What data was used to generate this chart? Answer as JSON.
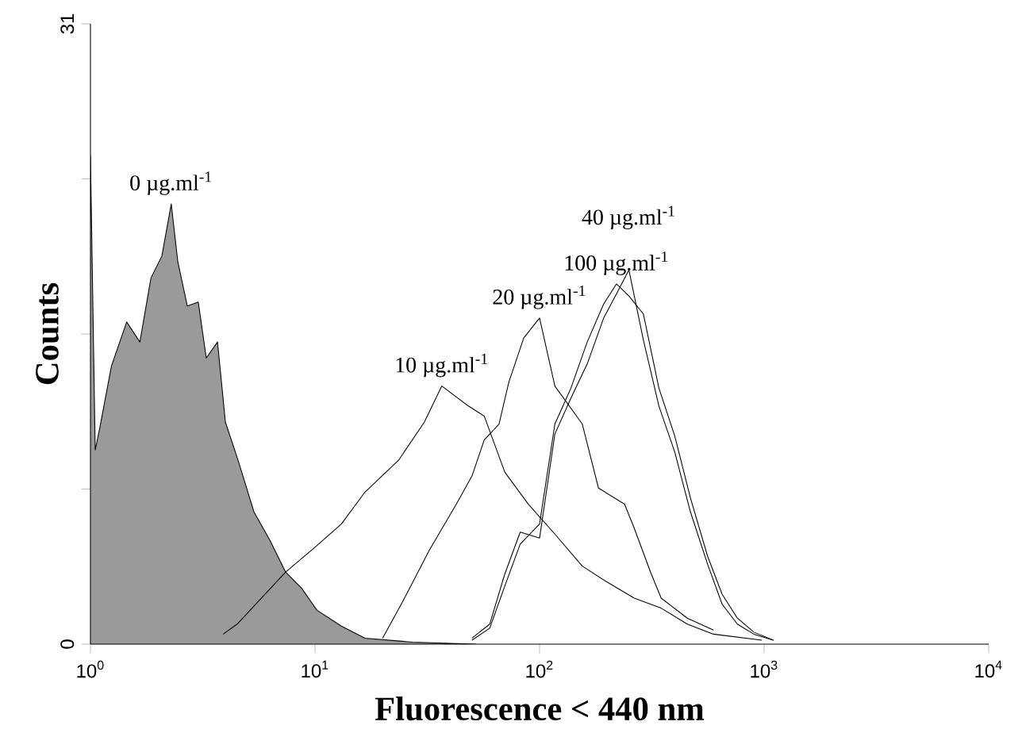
{
  "chart_data": {
    "type": "line",
    "xlabel": "Fluorescence < 440 nm",
    "ylabel": "Counts",
    "log": "x",
    "legend": false,
    "grid": false,
    "xlim": [
      1,
      10000
    ],
    "xticks": [
      {
        "value": 1,
        "label": "10$^{0}$"
      },
      {
        "value": 10,
        "label": "10$^{1}$"
      },
      {
        "value": 100,
        "label": "10$^{2}$"
      },
      {
        "value": 1000,
        "label": "10$^{3}$"
      },
      {
        "value": 10000,
        "label": "10$^{4}$"
      }
    ],
    "ylim": [
      0,
      31
    ],
    "yticks": [
      0,
      {
        "value": 7.75,
        "label": null
      },
      {
        "value": 15.5,
        "label": null
      },
      {
        "value": 23.25,
        "label": null
      },
      31
    ],
    "series": [
      {
        "name": "0 µg.ml$^{-1}$",
        "type": "area",
        "color": "#9a9a9a",
        "x": [
          1.0,
          1.05,
          1.1,
          1.24,
          1.45,
          1.66,
          1.86,
          2.08,
          2.29,
          2.45,
          2.7,
          3.02,
          3.28,
          3.68,
          3.99,
          4.54,
          5.35,
          6.29,
          7.4,
          8.71,
          10.2,
          13.1,
          16.7,
          27.2,
          52
        ],
        "values": [
          24.4,
          9.7,
          10.8,
          13.9,
          16.1,
          15.1,
          18.3,
          19.4,
          22.0,
          19.1,
          16.9,
          17.1,
          14.3,
          15.1,
          11.1,
          9.2,
          6.6,
          5.2,
          3.6,
          2.8,
          1.7,
          0.9,
          0.3,
          0.1,
          0
        ]
      },
      {
        "name": "10 µg.ml$^{-1}$",
        "color": "#000000",
        "x": [
          3.9,
          4.5,
          7.4,
          9.9,
          13.1,
          16.7,
          23.6,
          30.7,
          36.7,
          48.2,
          56.7,
          70,
          89,
          117,
          155,
          200,
          264,
          348,
          455,
          595,
          977
        ],
        "values": [
          0.5,
          1.0,
          3.6,
          4.8,
          6.0,
          7.6,
          9.2,
          11.1,
          12.9,
          11.9,
          11.4,
          8.6,
          7.0,
          5.5,
          3.9,
          3.1,
          2.3,
          1.8,
          1.0,
          0.5,
          0.2
        ]
      },
      {
        "name": "20 µg.ml$^{-1}$",
        "color": "#000000",
        "x": [
          20,
          24.5,
          32.3,
          42.6,
          50,
          56.7,
          66,
          73,
          85,
          100,
          117,
          155,
          183,
          239,
          264,
          312,
          348,
          455,
          595
        ],
        "values": [
          0.3,
          2.1,
          4.7,
          7.0,
          8.4,
          10.2,
          11.0,
          13.1,
          15.3,
          16.3,
          12.9,
          11.0,
          7.8,
          7.0,
          5.8,
          3.6,
          2.3,
          1.3,
          0.7
        ]
      },
      {
        "name": "40 µg.ml$^{-1}$",
        "color": "#000000",
        "x": [
          50,
          60,
          70,
          82,
          100,
          117,
          138,
          163,
          193,
          220,
          250,
          290,
          340,
          400,
          470,
          560,
          650,
          760,
          900,
          1100
        ],
        "values": [
          0.3,
          1.0,
          3.5,
          5.6,
          5.3,
          10.5,
          12.3,
          14.0,
          16.3,
          17.5,
          18.7,
          15.2,
          11.9,
          9.6,
          6.6,
          4.0,
          2.0,
          1.0,
          0.5,
          0.2
        ]
      },
      {
        "name": "100 µg.ml$^{-1}$",
        "color": "#000000",
        "x": [
          50,
          60,
          70,
          82,
          100,
          117,
          138,
          163,
          193,
          220,
          250,
          290,
          340,
          400,
          470,
          560,
          650,
          760,
          900,
          1100
        ],
        "values": [
          0.2,
          0.8,
          2.9,
          5.0,
          6.0,
          11.0,
          12.8,
          15.1,
          17.0,
          18.0,
          17.4,
          16.5,
          12.8,
          10.4,
          7.3,
          4.4,
          2.5,
          1.3,
          0.6,
          0.2
        ]
      }
    ]
  }
}
